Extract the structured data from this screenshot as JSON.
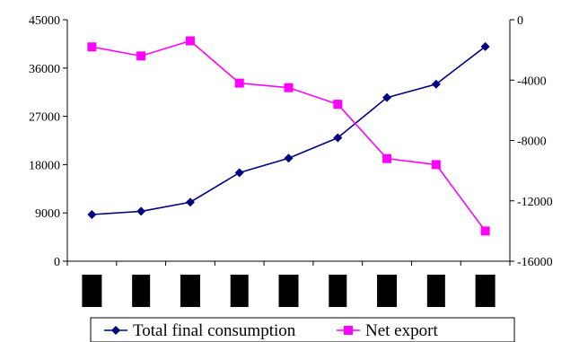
{
  "chart_data": {
    "type": "line",
    "categories": [
      "",
      "",
      "",
      "",
      "",
      "",
      "",
      "",
      ""
    ],
    "title": "",
    "xlabel": "",
    "ylabel_left": "",
    "ylabel_right": "",
    "grid": false,
    "legend_position": "bottom",
    "y_left": {
      "min": 0,
      "max": 45000,
      "ticks": [
        0,
        9000,
        18000,
        27000,
        36000,
        45000
      ],
      "tick_labels": [
        "0",
        "9000",
        "18000",
        "27000",
        "36000",
        "45000"
      ]
    },
    "y_right": {
      "min": -16000,
      "max": 0,
      "ticks": [
        -16000,
        -12000,
        -8000,
        -4000,
        0
      ],
      "tick_labels": [
        "-16000",
        "-12000",
        "-8000",
        "-4000",
        "0"
      ]
    },
    "series": [
      {
        "name": "Total final consumption",
        "axis": "left",
        "color": "#000080",
        "marker": "diamond",
        "values": [
          8700,
          9300,
          11000,
          16500,
          19200,
          23000,
          30500,
          33000,
          40000
        ]
      },
      {
        "name": "Net export",
        "axis": "right",
        "color": "#ff00ff",
        "marker": "square",
        "values": [
          -1800,
          -2400,
          -1400,
          -4200,
          -4500,
          -5600,
          -9200,
          -9600,
          -14000
        ]
      }
    ]
  }
}
